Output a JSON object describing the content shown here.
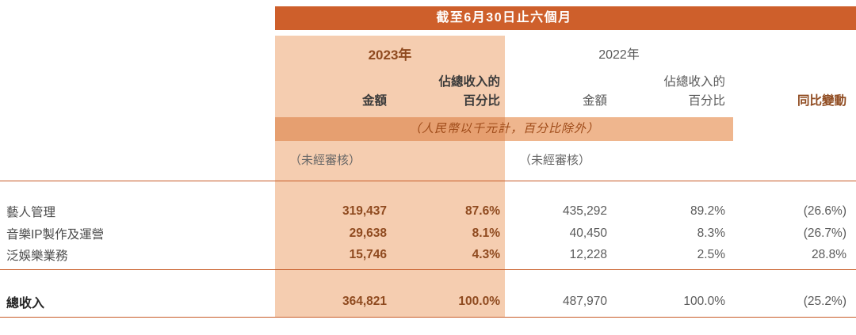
{
  "colors": {
    "accent": "#CE5F2B",
    "accent_dark_text": "#8F4A1F",
    "highlight_2023": "#F5CDB0",
    "band_left": "#E69F70",
    "band_right": "#EFB68E",
    "gray_text": "#5A5A5A"
  },
  "header": {
    "period": "截至6月30日止六個月"
  },
  "group_2023": {
    "year": "2023年",
    "share_line": "佔總收入的",
    "amount": "金額",
    "percent": "百分比",
    "unaudited": "（未經審核）"
  },
  "group_2022": {
    "year": "2022年",
    "share_line": "佔總收入的",
    "amount": "金額",
    "percent": "百分比",
    "unaudited": "（未經審核）"
  },
  "yoy_header": "同比變動",
  "unit_note": "（人民幣以千元計，百分比除外）",
  "rows": [
    {
      "label": "藝人管理",
      "amount_2023": "319,437",
      "pct_2023": "87.6%",
      "amount_2022": "435,292",
      "pct_2022": "89.2%",
      "yoy": "(26.6%)"
    },
    {
      "label": "音樂IP製作及運營",
      "amount_2023": "29,638",
      "pct_2023": "8.1%",
      "amount_2022": "40,450",
      "pct_2022": "8.3%",
      "yoy": "(26.7%)"
    },
    {
      "label": "泛娛樂業務",
      "amount_2023": "15,746",
      "pct_2023": "4.3%",
      "amount_2022": "12,228",
      "pct_2022": "2.5%",
      "yoy": "28.8%"
    }
  ],
  "total": {
    "label": "總收入",
    "amount_2023": "364,821",
    "pct_2023": "100.0%",
    "amount_2022": "487,970",
    "pct_2022": "100.0%",
    "yoy": "(25.2%)"
  }
}
